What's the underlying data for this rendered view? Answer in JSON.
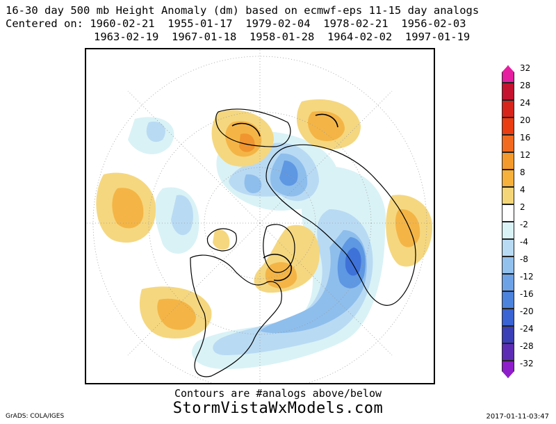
{
  "header": {
    "line1": "16-30 day 500 mb Height Anomaly (dm) based on ecmwf-eps 11-15 day analogs",
    "line2": "Centered on: 1960-02-21  1955-01-17  1979-02-04  1978-02-21  1956-02-03",
    "line3": "1963-02-19  1967-01-18  1958-01-28  1964-02-02  1997-01-19"
  },
  "colorbar": {
    "levels": [
      "32",
      "28",
      "24",
      "20",
      "16",
      "12",
      "8",
      "4",
      "2",
      "-2",
      "-4",
      "-8",
      "-12",
      "-16",
      "-20",
      "-24",
      "-28",
      "-32"
    ],
    "colors": [
      "#e51f9f",
      "#c5122e",
      "#d8251c",
      "#ea3d12",
      "#f26a1f",
      "#f49a2c",
      "#f5b13b",
      "#f4d679",
      "#ffffff",
      "#d9f2f6",
      "#b9daf3",
      "#92c1ee",
      "#6ea2e6",
      "#4c83dd",
      "#3a63d3",
      "#3a3fb8",
      "#5c2db4",
      "#8e1ec9"
    ]
  },
  "footer": {
    "contours_note": "Contours are #analogs above/below",
    "site": "StormVistaWxModels.com",
    "credit": "GrADS: COLA/IGES",
    "timestamp": "2017-01-11-03:47"
  },
  "map_legend_colors": {
    "warm_light": "#f5d77f",
    "warm_mid": "#f4b546",
    "warm_dark": "#f0952f",
    "cool_light": "#d9f2f6",
    "cool_mid": "#b9daf3",
    "cool_dark": "#8ebeec",
    "cool_deep": "#5e97e2",
    "cool_core": "#3f72d8"
  }
}
